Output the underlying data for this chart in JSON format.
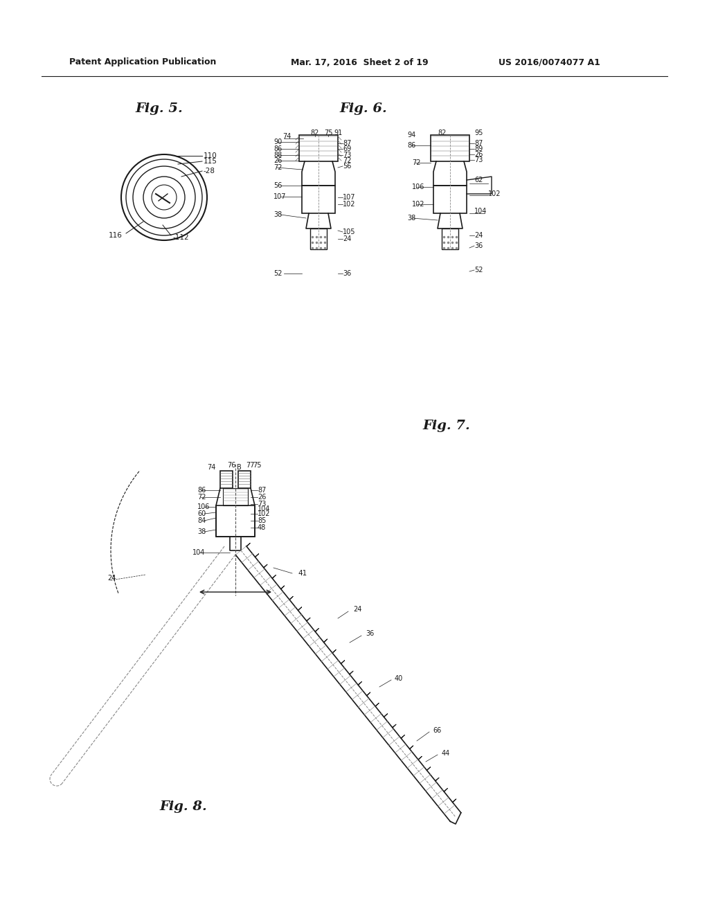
{
  "bg_color": "#ffffff",
  "header_left": "Patent Application Publication",
  "header_mid": "Mar. 17, 2016  Sheet 2 of 19",
  "header_right": "US 2016/0074077 A1",
  "fig5_label": "Fig. 5.",
  "fig6_label": "Fig. 6.",
  "fig7_label": "Fig. 7.",
  "fig8_label": "Fig. 8.",
  "line_color": "#1a1a1a",
  "text_color": "#1a1a1a"
}
